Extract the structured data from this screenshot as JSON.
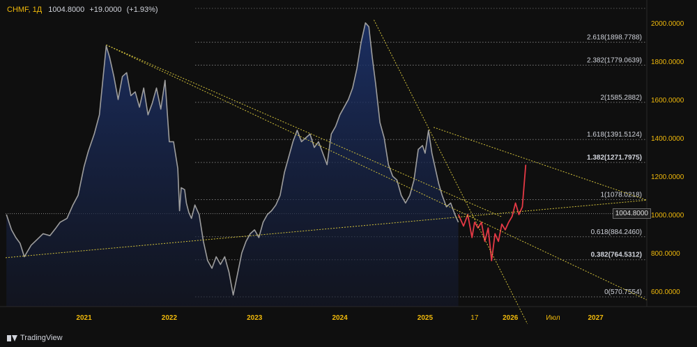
{
  "header": {
    "symbol": "CHMF, 1Д",
    "price": "1004.8000",
    "change": "+19.0000",
    "change_pct": "(+1.93%)"
  },
  "branding": {
    "label": "TradingView"
  },
  "colors": {
    "background": "#0f0f0f",
    "price_line": "#9e9e9e",
    "area_fill": "#1a2a4d",
    "forecast": "#e53945",
    "trendline": "#d4c33b",
    "fib_line": "#555555",
    "axis_text": "#f0b90b",
    "label_text": "#d1d4dc"
  },
  "chart_data": {
    "type": "line",
    "title": "",
    "xlabel": "",
    "ylabel": "",
    "current_price": 1004.8,
    "current_price_label": "1004.8000",
    "x_ticks": [
      "2021",
      "2022",
      "2023",
      "2024",
      "2025",
      "17",
      "2026",
      "Июл",
      "2027"
    ],
    "y_ticks": [
      "600.0000",
      "800.0000",
      "1000.0000",
      "1200.0000",
      "1400.0000",
      "1600.0000",
      "1800.0000",
      "2000.0000"
    ],
    "x_range": [
      2020.08,
      2027.6
    ],
    "ylim": [
      520,
      2090
    ],
    "fib_levels": [
      {
        "level": "0",
        "value": 570.7554,
        "label": "0(570.7554)",
        "bold": false
      },
      {
        "level": "0.382",
        "value": 764.5312,
        "label": "0.382(764.5312)",
        "bold": true
      },
      {
        "level": "0.618",
        "value": 884.246,
        "label": "0.618(884.2460)",
        "bold": false
      },
      {
        "level": "1",
        "value": 1078.0218,
        "label": "1(1078.0218)",
        "bold": false
      },
      {
        "level": "1.382",
        "value": 1271.7975,
        "label": "1.382(1271.7975)",
        "bold": true
      },
      {
        "level": "1.618",
        "value": 1391.5124,
        "label": "1.618(1391.5124)",
        "bold": false
      },
      {
        "level": "2",
        "value": 1585.2882,
        "label": "2(1585.2882)",
        "bold": false
      },
      {
        "level": "2.382",
        "value": 1779.0639,
        "label": "2.382(1779.0639)",
        "bold": false
      },
      {
        "level": "2.618",
        "value": 1898.7788,
        "label": "2.618(1898.7788)",
        "bold": false
      }
    ],
    "series": [
      {
        "kind": "price",
        "x": [
          2020.09,
          2020.15,
          2020.2,
          2020.25,
          2020.3,
          2020.38,
          2020.45,
          2020.52,
          2020.6,
          2020.67,
          2020.72,
          2020.8,
          2020.87,
          2020.93,
          2021.0,
          2021.05,
          2021.12,
          2021.18,
          2021.22,
          2021.26,
          2021.3,
          2021.35,
          2021.4,
          2021.45,
          2021.5,
          2021.55,
          2021.6,
          2021.65,
          2021.7,
          2021.75,
          2021.8,
          2021.85,
          2021.9,
          2021.95,
          2022.0,
          2022.05,
          2022.1,
          2022.12,
          2022.14,
          2022.18,
          2022.2,
          2022.23,
          2022.26,
          2022.3,
          2022.35,
          2022.4,
          2022.45,
          2022.5,
          2022.55,
          2022.6,
          2022.65,
          2022.7,
          2022.75,
          2022.8,
          2022.85,
          2022.9,
          2022.95,
          2023.0,
          2023.05,
          2023.1,
          2023.15,
          2023.2,
          2023.25,
          2023.3,
          2023.35,
          2023.4,
          2023.45,
          2023.5,
          2023.55,
          2023.6,
          2023.65,
          2023.7,
          2023.75,
          2023.8,
          2023.85,
          2023.9,
          2023.95,
          2024.0,
          2024.05,
          2024.1,
          2024.15,
          2024.2,
          2024.25,
          2024.3,
          2024.34,
          2024.38,
          2024.42,
          2024.47,
          2024.52,
          2024.57,
          2024.62,
          2024.67,
          2024.72,
          2024.77,
          2024.82,
          2024.87,
          2024.92,
          2024.97,
          2025.0,
          2025.04,
          2025.08,
          2025.12,
          2025.16,
          2025.2,
          2025.25,
          2025.3,
          2025.35,
          2025.39
        ],
        "y": [
          1000,
          920,
          880,
          850,
          780,
          840,
          870,
          900,
          890,
          930,
          960,
          980,
          1050,
          1100,
          1250,
          1330,
          1420,
          1520,
          1700,
          1880,
          1820,
          1720,
          1600,
          1720,
          1740,
          1620,
          1640,
          1560,
          1660,
          1520,
          1580,
          1660,
          1550,
          1700,
          1380,
          1380,
          1240,
          1020,
          1140,
          1130,
          1060,
          1010,
          980,
          1050,
          1000,
          860,
          760,
          720,
          780,
          740,
          780,
          700,
          580,
          690,
          800,
          860,
          900,
          920,
          880,
          960,
          1000,
          1020,
          1050,
          1100,
          1220,
          1300,
          1380,
          1440,
          1380,
          1400,
          1420,
          1350,
          1380,
          1320,
          1260,
          1420,
          1460,
          1520,
          1560,
          1600,
          1660,
          1760,
          1900,
          2000,
          1980,
          1820,
          1680,
          1480,
          1400,
          1260,
          1200,
          1180,
          1100,
          1060,
          1100,
          1180,
          1340,
          1360,
          1320,
          1440,
          1320,
          1240,
          1160,
          1100,
          1040,
          1060,
          1000,
          960
        ]
      },
      {
        "kind": "forecast",
        "x": [
          2025.39,
          2025.45,
          2025.5,
          2025.55,
          2025.58,
          2025.62,
          2025.66,
          2025.7,
          2025.74,
          2025.78,
          2025.82,
          2025.86,
          2025.9,
          2025.94,
          2025.98,
          2026.02,
          2026.06,
          2026.1,
          2026.14,
          2026.18
        ],
        "y": [
          1000,
          940,
          1000,
          880,
          960,
          930,
          960,
          860,
          930,
          760,
          900,
          860,
          950,
          920,
          960,
          990,
          1060,
          1000,
          1040,
          1260
        ]
      }
    ],
    "trendlines": [
      {
        "name": "",
        "x1": 2021.26,
        "y1": 1885,
        "x2": 2025.9,
        "y2": 988
      },
      {
        "name": "",
        "x1": 2021.26,
        "y1": 1885,
        "x2": 2027.6,
        "y2": 555
      },
      {
        "name": "",
        "x1": 2020.08,
        "y1": 775,
        "x2": 2027.6,
        "y2": 1075
      },
      {
        "name": "",
        "x1": 2024.4,
        "y1": 2015,
        "x2": 2026.2,
        "y2": 430
      },
      {
        "name": "",
        "x1": 2025.1,
        "y1": 1455,
        "x2": 2027.6,
        "y2": 1075
      }
    ]
  }
}
